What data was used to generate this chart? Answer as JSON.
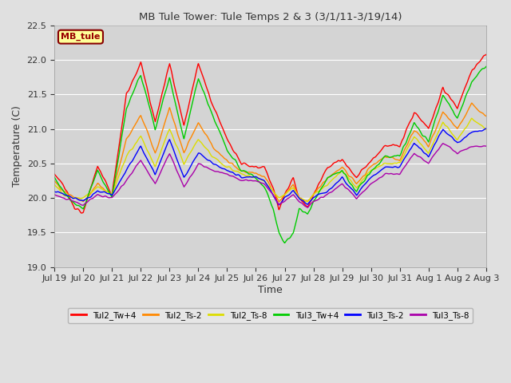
{
  "title": "MB Tule Tower: Tule Temps 2 & 3 (3/1/11-3/19/14)",
  "xlabel": "Time",
  "ylabel": "Temperature (C)",
  "ylim": [
    19.0,
    22.5
  ],
  "yticks": [
    19.0,
    19.5,
    20.0,
    20.5,
    21.0,
    21.5,
    22.0,
    22.5
  ],
  "fig_bg": "#e0e0e0",
  "plot_bg": "#d4d4d4",
  "legend_label": "MB_tule",
  "legend_bg": "#ffff99",
  "legend_border": "#880000",
  "series_colors": {
    "Tul2_Tw+4": "#ff0000",
    "Tul2_Ts-2": "#ff8800",
    "Tul2_Ts-8": "#dddd00",
    "Tul3_Tw+4": "#00cc00",
    "Tul3_Ts-2": "#0000ff",
    "Tul3_Ts-8": "#aa00aa"
  },
  "x_tick_labels": [
    "Jul 19",
    "Jul 20",
    "Jul 21",
    "Jul 22",
    "Jul 23",
    "Jul 24",
    "Jul 25",
    "Jul 26",
    "Jul 27",
    "Jul 28",
    "Jul 29",
    "Jul 30",
    "Jul 31",
    "Aug 1",
    "Aug 2",
    "Aug 3"
  ]
}
